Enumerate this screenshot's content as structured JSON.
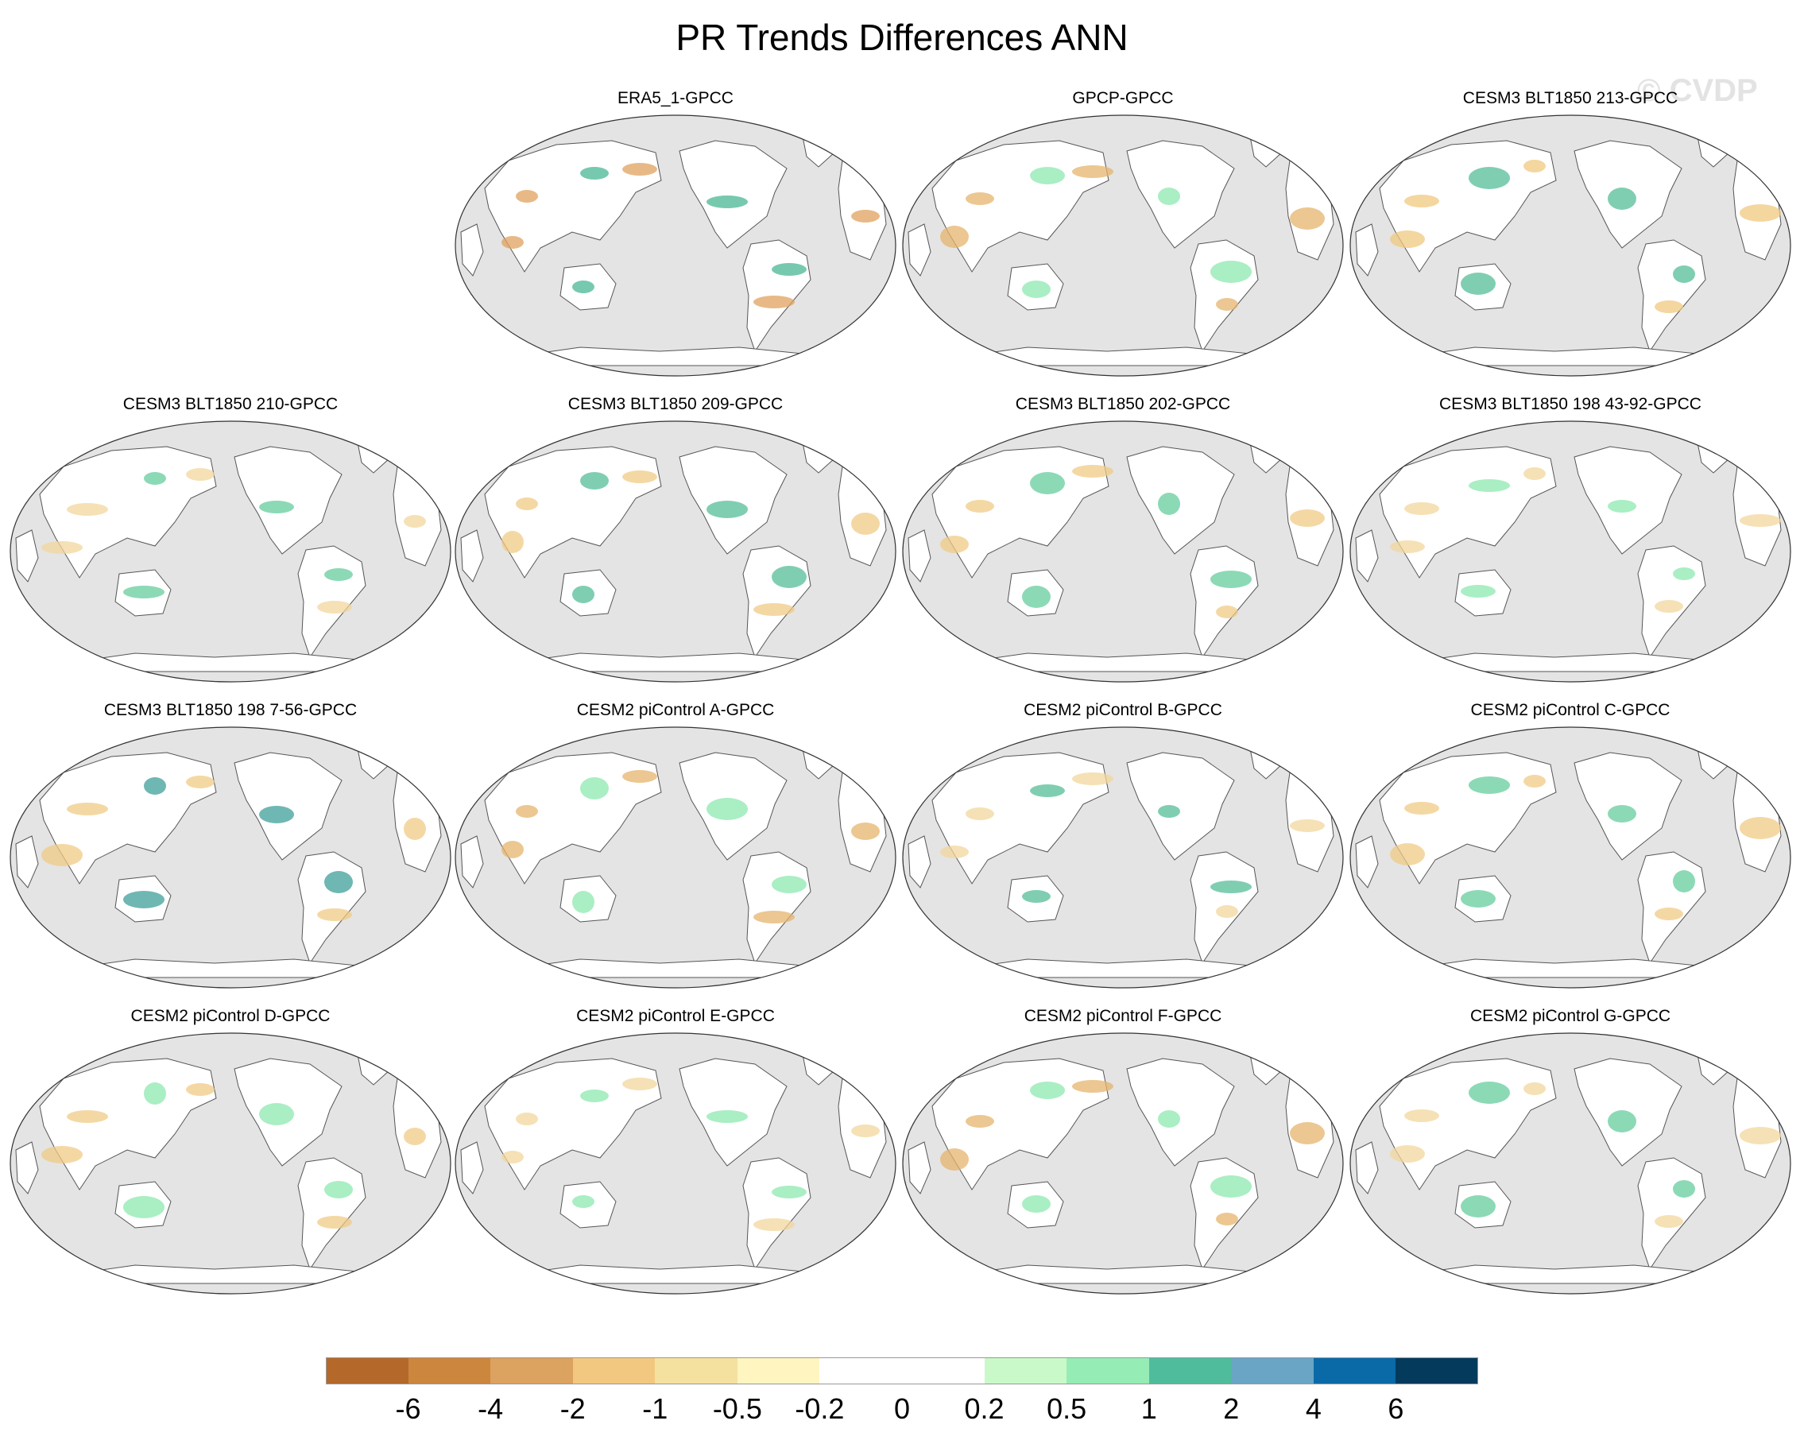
{
  "title": "PR Trends Differences ANN",
  "watermark": "© CVDP",
  "panels": [
    {
      "title": "ERA5_1-GPCC",
      "tint": [
        "#e0a25e",
        "#48b794"
      ]
    },
    {
      "title": "GPCP-GPCC",
      "tint": [
        "#e6b46e",
        "#8ee8b0"
      ]
    },
    {
      "title": "CESM3 BLT1850 213-GPCC",
      "tint": [
        "#f0c87f",
        "#55bd98"
      ]
    },
    {
      "title": "CESM3 BLT1850 210-GPCC",
      "tint": [
        "#f2d79c",
        "#66cc9e"
      ]
    },
    {
      "title": "CESM3 BLT1850 209-GPCC",
      "tint": [
        "#f0cb86",
        "#55bd98"
      ]
    },
    {
      "title": "CESM3 BLT1850 202-GPCC",
      "tint": [
        "#f0cb86",
        "#66cc9e"
      ]
    },
    {
      "title": "CESM3 BLT1850 198 43-92-GPCC",
      "tint": [
        "#f2d79c",
        "#8ee8b0"
      ]
    },
    {
      "title": "CESM3 BLT1850 198 7-56-GPCC",
      "tint": [
        "#f0cb86",
        "#3f9f9a"
      ]
    },
    {
      "title": "CESM2 piControl A-GPCC",
      "tint": [
        "#e6b46e",
        "#8ee8b0"
      ]
    },
    {
      "title": "CESM2 piControl B-GPCC",
      "tint": [
        "#f2d79c",
        "#55bd98"
      ]
    },
    {
      "title": "CESM2 piControl C-GPCC",
      "tint": [
        "#f0cb86",
        "#66cc9e"
      ]
    },
    {
      "title": "CESM2 piControl D-GPCC",
      "tint": [
        "#f0cb86",
        "#8ee8b0"
      ]
    },
    {
      "title": "CESM2 piControl E-GPCC",
      "tint": [
        "#f2d79c",
        "#8ee8b0"
      ]
    },
    {
      "title": "CESM2 piControl F-GPCC",
      "tint": [
        "#e6b46e",
        "#8ee8b0"
      ]
    },
    {
      "title": "CESM2 piControl G-GPCC",
      "tint": [
        "#f2d79c",
        "#66cc9e"
      ]
    }
  ],
  "colorbar": {
    "colors": [
      "#b4692a",
      "#cc863e",
      "#dca25f",
      "#f2c880",
      "#f4e1a0",
      "#fef5c0",
      "#ffffff",
      "#ffffff",
      "#c9f9c9",
      "#96ecb5",
      "#4fbd9c",
      "#6aa5c6",
      "#0a6aa7",
      "#043b5c"
    ],
    "labels": [
      "-6",
      "-4",
      "-2",
      "-1",
      "-0.5",
      "-0.2",
      "0",
      "0.2",
      "0.5",
      "1",
      "2",
      "4",
      "6"
    ]
  }
}
